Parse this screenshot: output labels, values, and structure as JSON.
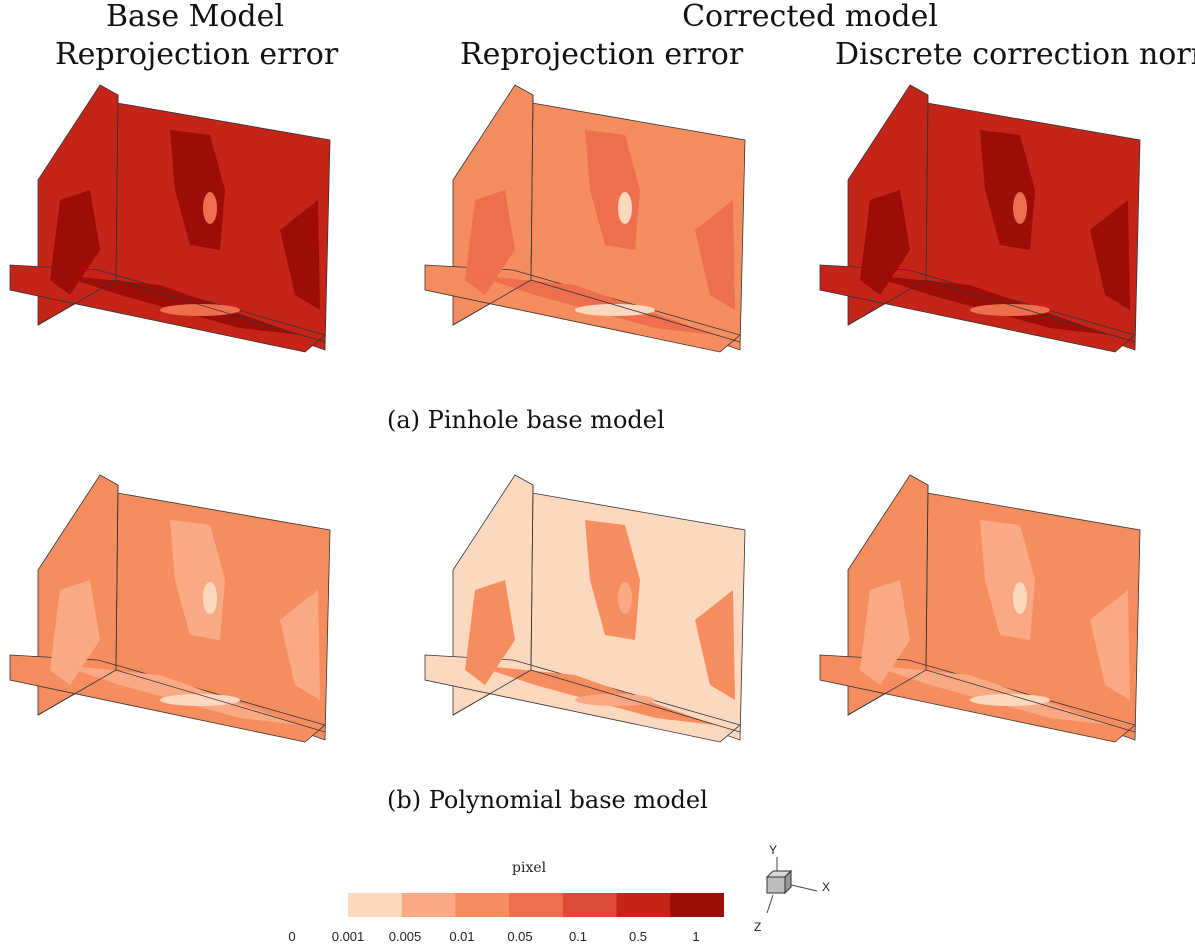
{
  "headers": {
    "col1_line1": "Base Model",
    "col1_line2": "Reprojection error",
    "group": "Corrected model",
    "col2_line2": "Reprojection error",
    "col3_line2": "Discrete correction norm"
  },
  "captions": {
    "a": "(a) Pinhole base model",
    "b": "(b) Polynomial base model"
  },
  "colorbar": {
    "title": "pixel",
    "ticks": [
      "0",
      "0.001",
      "0.005",
      "0.01",
      "0.05",
      "0.1",
      "0.5",
      "1"
    ],
    "colors": [
      "#fcd9be",
      "#f9aa85",
      "#f68d5f",
      "#ed6f4e",
      "#de4a38",
      "#c52519",
      "#9c0d07"
    ]
  },
  "axis_triad": {
    "y": "Y",
    "x": "X",
    "z": "Z"
  },
  "panels": [
    {
      "row": "a",
      "column": "Base Model reprojection error",
      "base_level": 5,
      "patch_level": 6,
      "hot_level": 3
    },
    {
      "row": "a",
      "column": "Corrected reprojection error",
      "base_level": 2,
      "patch_level": 3,
      "hot_level": 0
    },
    {
      "row": "a",
      "column": "Discrete correction norm",
      "base_level": 5,
      "patch_level": 6,
      "hot_level": 3
    },
    {
      "row": "b",
      "column": "Base Model reprojection error",
      "base_level": 2,
      "patch_level": 1,
      "hot_level": 0
    },
    {
      "row": "b",
      "column": "Corrected reprojection error",
      "base_level": 0,
      "patch_level": 2,
      "hot_level": 1
    },
    {
      "row": "b",
      "column": "Discrete correction norm",
      "base_level": 2,
      "patch_level": 1,
      "hot_level": 0
    }
  ]
}
